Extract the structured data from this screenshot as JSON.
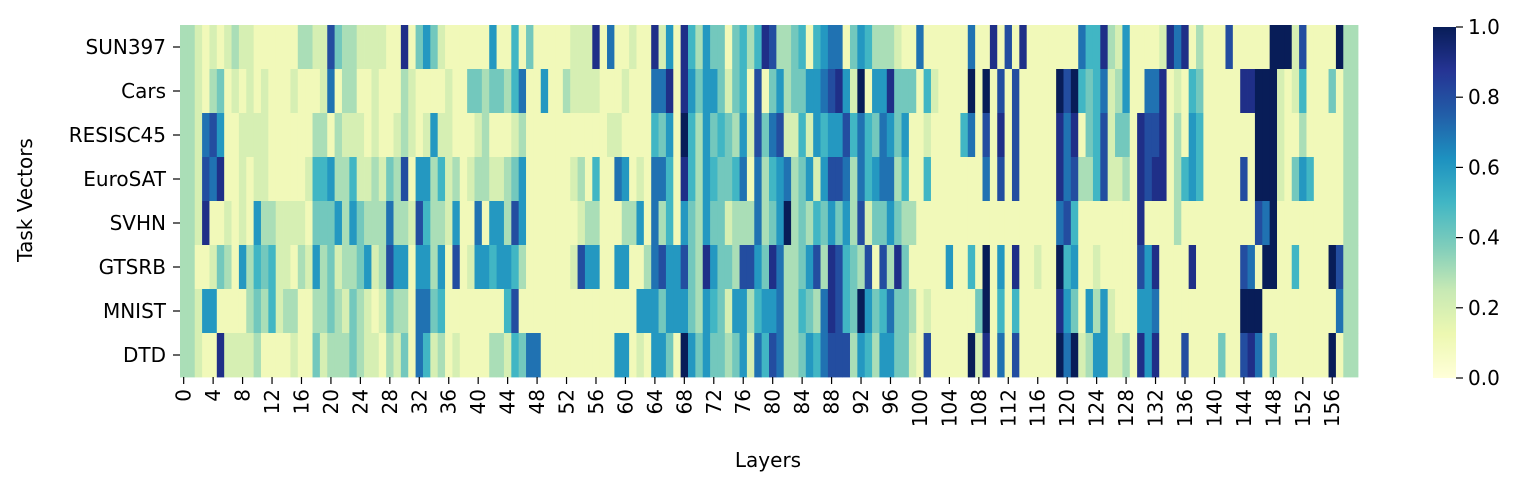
{
  "chart_data": {
    "type": "heatmap",
    "title": "",
    "xlabel": "Layers",
    "ylabel": "Task Vectors",
    "rows": [
      "SUN397",
      "Cars",
      "RESISC45",
      "EuroSAT",
      "SVHN",
      "GTSRB",
      "MNIST",
      "DTD"
    ],
    "x_range": [
      0,
      158
    ],
    "x_tick_labels": [
      "0",
      "4",
      "8",
      "12",
      "16",
      "20",
      "24",
      "28",
      "32",
      "36",
      "40",
      "44",
      "48",
      "52",
      "56",
      "60",
      "64",
      "68",
      "72",
      "76",
      "80",
      "84",
      "88",
      "92",
      "96",
      "100",
      "104",
      "108",
      "112",
      "116",
      "120",
      "124",
      "128",
      "132",
      "136",
      "140",
      "144",
      "148",
      "152",
      "156"
    ],
    "colorbar": {
      "colormap": "YlGnBu",
      "range": [
        0.0,
        1.0
      ],
      "tick_labels": [
        "0.0",
        "0.2",
        "0.4",
        "0.6",
        "0.8",
        "1.0"
      ],
      "stops": [
        "#ffffd9",
        "#edf8b1",
        "#c7e9b4",
        "#7fcdbb",
        "#41b6c4",
        "#1d91c0",
        "#225ea8",
        "#253494",
        "#081d58"
      ]
    },
    "values": [
      [
        0.3,
        0.3,
        0.2,
        0.1,
        0.2,
        0.1,
        0.2,
        0.3,
        0.2,
        0.2,
        0.1,
        0.1,
        0.1,
        0.1,
        0.1,
        0.1,
        0.3,
        0.3,
        0.2,
        0.2,
        0.8,
        0.4,
        0.3,
        0.3,
        0.2,
        0.2,
        0.2,
        0.2,
        0.1,
        0.1,
        0.9,
        0.1,
        0.4,
        0.6,
        0.4,
        0.2,
        0.1,
        0.1,
        0.1,
        0.1,
        0.1,
        0.1,
        0.6,
        0.1,
        0.1,
        0.5,
        0.1,
        0.4,
        0.1,
        0.1,
        0.1,
        0.1,
        0.1,
        0.2,
        0.2,
        0.2,
        0.9,
        0.1,
        0.7,
        0.1,
        0.1,
        0.2,
        0.1,
        0.1,
        0.9,
        0.2,
        0.6,
        0.1,
        0.9,
        0.5,
        0.3,
        0.6,
        0.4,
        0.4,
        0.1,
        0.4,
        0.5,
        0.3,
        0.5,
        0.9,
        0.8,
        0.3,
        0.3,
        0.4,
        0.5,
        0.1,
        0.5,
        0.6,
        0.7,
        0.7,
        0.1,
        0.4,
        0.6,
        0.5,
        0.3,
        0.3,
        0.3,
        0.2,
        0.1,
        0.1,
        0.7,
        0.1,
        0.1,
        0.1,
        0.1,
        0.1,
        0.1,
        0.7,
        0.1,
        0.1,
        0.9,
        0.1,
        0.8,
        0.1,
        0.9,
        0.1,
        0.1,
        0.1,
        0.1,
        0.1,
        0.1,
        0.1,
        0.7,
        0.5,
        0.5,
        0.9,
        0.3,
        0.2,
        0.6,
        0.1,
        0.1,
        0.1,
        0.1,
        0.2,
        0.9,
        0.7,
        0.9,
        0.1,
        0.3,
        0.1,
        0.1,
        0.1,
        0.8,
        0.1,
        0.1,
        0.1,
        0.1,
        0.1,
        1.0,
        1.0,
        1.0,
        0.2,
        0.8,
        0.1,
        0.1,
        0.1,
        0.1,
        1.0,
        0.3,
        0.3
      ],
      [
        0.3,
        0.3,
        0.2,
        0.1,
        0.3,
        0.4,
        0.1,
        0.2,
        0.1,
        0.2,
        0.1,
        0.2,
        0.1,
        0.1,
        0.1,
        0.2,
        0.1,
        0.1,
        0.1,
        0.2,
        0.7,
        0.1,
        0.3,
        0.3,
        0.1,
        0.1,
        0.2,
        0.1,
        0.1,
        0.1,
        0.3,
        0.2,
        0.1,
        0.1,
        0.1,
        0.1,
        0.2,
        0.1,
        0.1,
        0.4,
        0.4,
        0.3,
        0.4,
        0.4,
        0.3,
        0.5,
        0.7,
        0.1,
        0.1,
        0.6,
        0.1,
        0.1,
        0.3,
        0.2,
        0.2,
        0.2,
        0.2,
        0.1,
        0.1,
        0.1,
        0.2,
        0.1,
        0.1,
        0.1,
        0.7,
        0.7,
        0.9,
        0.1,
        0.9,
        0.6,
        0.4,
        0.6,
        0.6,
        0.4,
        0.2,
        0.4,
        0.5,
        0.1,
        0.8,
        0.1,
        0.4,
        0.6,
        0.3,
        0.4,
        0.4,
        0.6,
        0.6,
        0.7,
        0.8,
        0.9,
        0.6,
        0.2,
        1.0,
        0.1,
        0.6,
        0.6,
        0.9,
        0.4,
        0.4,
        0.4,
        0.1,
        0.5,
        0.2,
        0.1,
        0.1,
        0.1,
        0.1,
        1.0,
        0.1,
        1.0,
        0.1,
        0.8,
        0.1,
        0.8,
        0.1,
        0.1,
        0.1,
        0.1,
        0.1,
        1.0,
        0.8,
        1.0,
        0.5,
        0.4,
        0.5,
        0.7,
        0.2,
        0.3,
        0.6,
        0.1,
        0.1,
        0.7,
        0.7,
        0.9,
        0.1,
        0.2,
        0.1,
        0.5,
        0.4,
        0.1,
        0.1,
        0.1,
        0.1,
        0.1,
        0.9,
        0.9,
        1.0,
        1.0,
        1.0,
        0.2,
        0.1,
        0.2,
        0.5,
        0.1,
        0.1,
        0.1,
        0.4,
        0.1,
        0.3,
        0.3
      ],
      [
        0.3,
        0.3,
        0.2,
        0.7,
        0.8,
        0.6,
        0.1,
        0.1,
        0.2,
        0.2,
        0.2,
        0.2,
        0.1,
        0.1,
        0.1,
        0.1,
        0.1,
        0.1,
        0.3,
        0.3,
        0.1,
        0.3,
        0.2,
        0.2,
        0.2,
        0.1,
        0.2,
        0.1,
        0.1,
        0.2,
        0.3,
        0.2,
        0.1,
        0.2,
        0.6,
        0.2,
        0.2,
        0.1,
        0.1,
        0.1,
        0.2,
        0.3,
        0.1,
        0.1,
        0.1,
        0.2,
        0.3,
        0.1,
        0.1,
        0.1,
        0.1,
        0.1,
        0.1,
        0.1,
        0.1,
        0.1,
        0.1,
        0.1,
        0.2,
        0.2,
        0.1,
        0.1,
        0.1,
        0.1,
        0.5,
        0.4,
        0.6,
        0.1,
        1.0,
        0.5,
        0.3,
        0.6,
        0.4,
        0.5,
        0.4,
        0.3,
        0.6,
        0.2,
        0.8,
        0.4,
        0.7,
        0.8,
        0.2,
        0.2,
        0.5,
        0.2,
        0.6,
        0.5,
        0.6,
        0.6,
        0.8,
        0.5,
        0.7,
        0.5,
        0.4,
        0.7,
        0.6,
        0.4,
        0.6,
        0.1,
        0.1,
        0.2,
        0.1,
        0.1,
        0.1,
        0.1,
        0.5,
        0.7,
        0.1,
        0.8,
        0.1,
        0.9,
        0.1,
        0.8,
        0.1,
        0.1,
        0.1,
        0.1,
        0.1,
        0.9,
        0.7,
        0.9,
        0.1,
        0.4,
        0.5,
        0.8,
        0.2,
        0.4,
        0.4,
        0.1,
        0.9,
        0.8,
        0.8,
        0.9,
        0.1,
        0.3,
        0.1,
        0.6,
        0.5,
        0.1,
        0.1,
        0.1,
        0.1,
        0.1,
        0.1,
        0.1,
        1.0,
        1.0,
        1.0,
        0.2,
        0.1,
        0.1,
        0.3,
        0.1,
        0.1,
        0.1,
        0.1,
        0.1,
        0.3,
        0.3
      ],
      [
        0.3,
        0.3,
        0.2,
        0.8,
        0.7,
        0.9,
        0.1,
        0.1,
        0.2,
        0.1,
        0.2,
        0.2,
        0.1,
        0.1,
        0.1,
        0.1,
        0.1,
        0.2,
        0.5,
        0.5,
        0.6,
        0.3,
        0.3,
        0.5,
        0.2,
        0.2,
        0.3,
        0.2,
        0.4,
        0.3,
        0.8,
        0.1,
        0.6,
        0.6,
        0.3,
        0.5,
        0.2,
        0.3,
        0.1,
        0.2,
        0.3,
        0.3,
        0.2,
        0.2,
        0.3,
        0.4,
        0.6,
        0.1,
        0.1,
        0.1,
        0.1,
        0.1,
        0.1,
        0.2,
        0.3,
        0.1,
        0.5,
        0.1,
        0.1,
        0.7,
        0.6,
        0.1,
        0.2,
        0.1,
        0.7,
        0.7,
        0.5,
        0.1,
        0.9,
        0.5,
        0.3,
        0.6,
        0.5,
        0.4,
        0.4,
        0.5,
        0.7,
        0.1,
        0.7,
        0.3,
        0.5,
        0.6,
        0.7,
        0.3,
        0.4,
        0.6,
        0.2,
        0.6,
        0.8,
        0.8,
        0.7,
        0.3,
        0.7,
        0.5,
        0.6,
        0.7,
        0.7,
        0.3,
        0.5,
        0.1,
        0.1,
        0.5,
        0.1,
        0.1,
        0.1,
        0.1,
        0.1,
        0.1,
        0.1,
        0.7,
        0.1,
        0.8,
        0.1,
        0.8,
        0.1,
        0.1,
        0.1,
        0.1,
        0.1,
        0.9,
        0.7,
        0.8,
        0.3,
        0.3,
        0.5,
        0.8,
        0.2,
        0.2,
        0.3,
        0.1,
        0.9,
        0.8,
        0.9,
        0.9,
        0.1,
        0.3,
        0.5,
        0.6,
        0.5,
        0.1,
        0.1,
        0.1,
        0.1,
        0.1,
        0.8,
        0.1,
        1.0,
        1.0,
        1.0,
        0.2,
        0.1,
        0.4,
        0.6,
        0.5,
        0.1,
        0.1,
        0.1,
        0.1,
        0.3,
        0.3
      ],
      [
        0.3,
        0.3,
        0.2,
        0.9,
        0.1,
        0.1,
        0.2,
        0.1,
        0.2,
        0.1,
        0.6,
        0.3,
        0.3,
        0.2,
        0.2,
        0.2,
        0.2,
        0.1,
        0.4,
        0.4,
        0.4,
        0.6,
        0.3,
        0.6,
        0.4,
        0.3,
        0.3,
        0.3,
        0.7,
        0.3,
        0.3,
        0.2,
        0.8,
        0.5,
        0.3,
        0.3,
        0.2,
        0.6,
        0.1,
        0.1,
        0.7,
        0.1,
        0.6,
        0.6,
        0.3,
        0.8,
        0.6,
        0.1,
        0.1,
        0.1,
        0.1,
        0.1,
        0.1,
        0.1,
        0.2,
        0.3,
        0.3,
        0.1,
        0.1,
        0.1,
        0.3,
        0.3,
        0.6,
        0.1,
        0.7,
        0.3,
        0.5,
        0.1,
        0.6,
        0.4,
        0.3,
        0.6,
        0.4,
        0.4,
        0.2,
        0.3,
        0.3,
        0.3,
        0.7,
        0.3,
        0.4,
        0.6,
        1.0,
        0.3,
        0.4,
        0.3,
        0.5,
        0.4,
        0.6,
        0.4,
        0.6,
        0.3,
        0.8,
        0.2,
        0.4,
        0.4,
        0.6,
        0.4,
        0.3,
        0.3,
        0.1,
        0.1,
        0.1,
        0.1,
        0.1,
        0.1,
        0.1,
        0.1,
        0.1,
        0.1,
        0.1,
        0.1,
        0.1,
        0.1,
        0.1,
        0.1,
        0.1,
        0.1,
        0.1,
        0.7,
        0.8,
        0.5,
        0.1,
        0.1,
        0.1,
        0.1,
        0.1,
        0.1,
        0.1,
        0.1,
        0.9,
        0.1,
        0.1,
        0.1,
        0.1,
        0.3,
        0.1,
        0.1,
        0.1,
        0.1,
        0.1,
        0.1,
        0.1,
        0.1,
        0.1,
        0.1,
        0.8,
        0.7,
        1.0,
        0.1,
        0.1,
        0.1,
        0.1,
        0.1,
        0.1,
        0.1,
        0.1,
        0.1,
        0.3,
        0.3
      ],
      [
        0.3,
        0.3,
        0.1,
        0.1,
        0.2,
        0.4,
        0.3,
        0.1,
        0.6,
        0.3,
        0.5,
        0.4,
        0.5,
        0.2,
        0.2,
        0.1,
        0.3,
        0.2,
        0.6,
        0.3,
        0.4,
        0.2,
        0.3,
        0.3,
        0.4,
        0.6,
        0.2,
        0.3,
        0.8,
        0.6,
        0.6,
        0.1,
        0.6,
        0.6,
        0.3,
        0.6,
        0.1,
        0.8,
        0.1,
        0.2,
        0.6,
        0.6,
        0.5,
        0.6,
        0.6,
        0.5,
        0.3,
        0.1,
        0.1,
        0.1,
        0.1,
        0.1,
        0.1,
        0.2,
        0.8,
        0.6,
        0.6,
        0.1,
        0.1,
        0.6,
        0.6,
        0.1,
        0.1,
        0.3,
        0.7,
        0.8,
        0.6,
        0.6,
        0.8,
        0.4,
        0.3,
        0.9,
        0.6,
        0.4,
        0.4,
        0.3,
        0.8,
        0.8,
        0.6,
        0.4,
        0.9,
        0.7,
        0.3,
        0.3,
        0.4,
        0.6,
        0.8,
        0.3,
        0.9,
        0.8,
        0.5,
        0.4,
        0.3,
        0.8,
        0.1,
        0.8,
        0.3,
        0.9,
        0.4,
        0.1,
        0.1,
        0.1,
        0.1,
        0.1,
        0.6,
        0.1,
        0.1,
        0.5,
        0.1,
        1.0,
        0.1,
        0.6,
        0.1,
        0.9,
        0.1,
        0.1,
        0.2,
        0.1,
        0.1,
        1.0,
        0.5,
        0.6,
        0.1,
        0.1,
        0.2,
        0.1,
        0.1,
        0.1,
        0.1,
        0.1,
        0.8,
        0.6,
        0.9,
        0.1,
        0.1,
        0.1,
        0.1,
        0.9,
        0.1,
        0.1,
        0.1,
        0.1,
        0.1,
        0.1,
        0.8,
        0.7,
        0.1,
        1.0,
        1.0,
        0.1,
        0.1,
        0.5,
        0.1,
        0.1,
        0.1,
        0.1,
        1.0,
        0.8,
        0.3,
        0.3
      ],
      [
        0.3,
        0.3,
        0.2,
        0.6,
        0.6,
        0.1,
        0.1,
        0.1,
        0.1,
        0.3,
        0.4,
        0.3,
        0.5,
        0.2,
        0.3,
        0.3,
        0.1,
        0.1,
        0.3,
        0.3,
        0.4,
        0.3,
        0.2,
        0.4,
        0.3,
        0.2,
        0.1,
        0.2,
        0.4,
        0.3,
        0.3,
        0.1,
        0.7,
        0.7,
        0.4,
        0.5,
        0.1,
        0.1,
        0.1,
        0.1,
        0.1,
        0.1,
        0.1,
        0.1,
        0.5,
        0.8,
        0.1,
        0.1,
        0.1,
        0.1,
        0.1,
        0.1,
        0.1,
        0.1,
        0.1,
        0.1,
        0.1,
        0.1,
        0.1,
        0.1,
        0.1,
        0.1,
        0.6,
        0.6,
        0.6,
        0.4,
        0.6,
        0.6,
        0.6,
        0.4,
        0.3,
        0.6,
        0.5,
        0.4,
        0.2,
        0.6,
        0.6,
        0.3,
        0.5,
        0.6,
        0.6,
        0.7,
        0.3,
        0.3,
        0.5,
        0.4,
        0.3,
        0.7,
        0.9,
        0.8,
        0.5,
        0.4,
        1.0,
        0.6,
        0.4,
        0.5,
        0.7,
        0.4,
        0.4,
        0.3,
        0.1,
        0.2,
        0.1,
        0.1,
        0.1,
        0.1,
        0.1,
        0.1,
        0.4,
        1.0,
        0.1,
        0.5,
        0.1,
        0.5,
        0.1,
        0.1,
        0.1,
        0.1,
        0.1,
        0.9,
        0.6,
        0.4,
        0.1,
        0.6,
        0.3,
        0.6,
        0.2,
        0.1,
        0.1,
        0.1,
        0.6,
        0.6,
        0.7,
        0.1,
        0.1,
        0.1,
        0.1,
        0.1,
        0.1,
        0.1,
        0.1,
        0.1,
        0.1,
        0.1,
        1.0,
        1.0,
        1.0,
        0.1,
        0.1,
        0.1,
        0.1,
        0.1,
        0.1,
        0.1,
        0.1,
        0.1,
        0.1,
        0.7,
        0.3,
        0.3
      ],
      [
        0.3,
        0.3,
        0.2,
        0.1,
        0.1,
        0.9,
        0.2,
        0.2,
        0.2,
        0.2,
        0.3,
        0.1,
        0.1,
        0.1,
        0.1,
        0.2,
        0.1,
        0.1,
        0.4,
        0.2,
        0.3,
        0.3,
        0.3,
        0.4,
        0.3,
        0.2,
        0.2,
        0.1,
        0.3,
        0.2,
        0.4,
        0.1,
        0.7,
        0.5,
        0.2,
        0.3,
        0.1,
        0.2,
        0.1,
        0.1,
        0.1,
        0.1,
        0.3,
        0.3,
        0.2,
        0.5,
        0.4,
        0.7,
        0.7,
        0.1,
        0.1,
        0.1,
        0.1,
        0.1,
        0.1,
        0.1,
        0.1,
        0.1,
        0.1,
        0.6,
        0.6,
        0.1,
        0.2,
        0.1,
        0.6,
        0.6,
        0.4,
        0.1,
        1.0,
        0.6,
        0.4,
        0.6,
        0.4,
        0.4,
        0.3,
        0.4,
        0.6,
        0.2,
        0.7,
        0.5,
        0.8,
        0.7,
        0.3,
        0.3,
        0.4,
        0.6,
        0.5,
        0.7,
        0.8,
        0.8,
        0.8,
        0.3,
        0.6,
        0.5,
        0.3,
        0.6,
        0.6,
        0.4,
        0.4,
        0.2,
        0.1,
        0.8,
        0.1,
        0.1,
        0.1,
        0.1,
        0.1,
        1.0,
        0.2,
        0.9,
        0.1,
        0.7,
        0.1,
        0.8,
        0.1,
        0.1,
        0.1,
        0.1,
        0.1,
        1.0,
        0.7,
        1.0,
        0.2,
        0.3,
        0.6,
        0.6,
        0.2,
        0.2,
        0.3,
        0.1,
        0.9,
        0.6,
        0.9,
        0.1,
        0.1,
        0.1,
        0.8,
        0.1,
        0.1,
        0.1,
        0.1,
        0.4,
        0.1,
        0.1,
        0.8,
        0.9,
        0.7,
        0.1,
        0.4,
        0.1,
        0.1,
        0.1,
        0.1,
        0.1,
        0.1,
        0.1,
        1.0,
        0.1,
        0.3,
        0.3
      ]
    ]
  }
}
